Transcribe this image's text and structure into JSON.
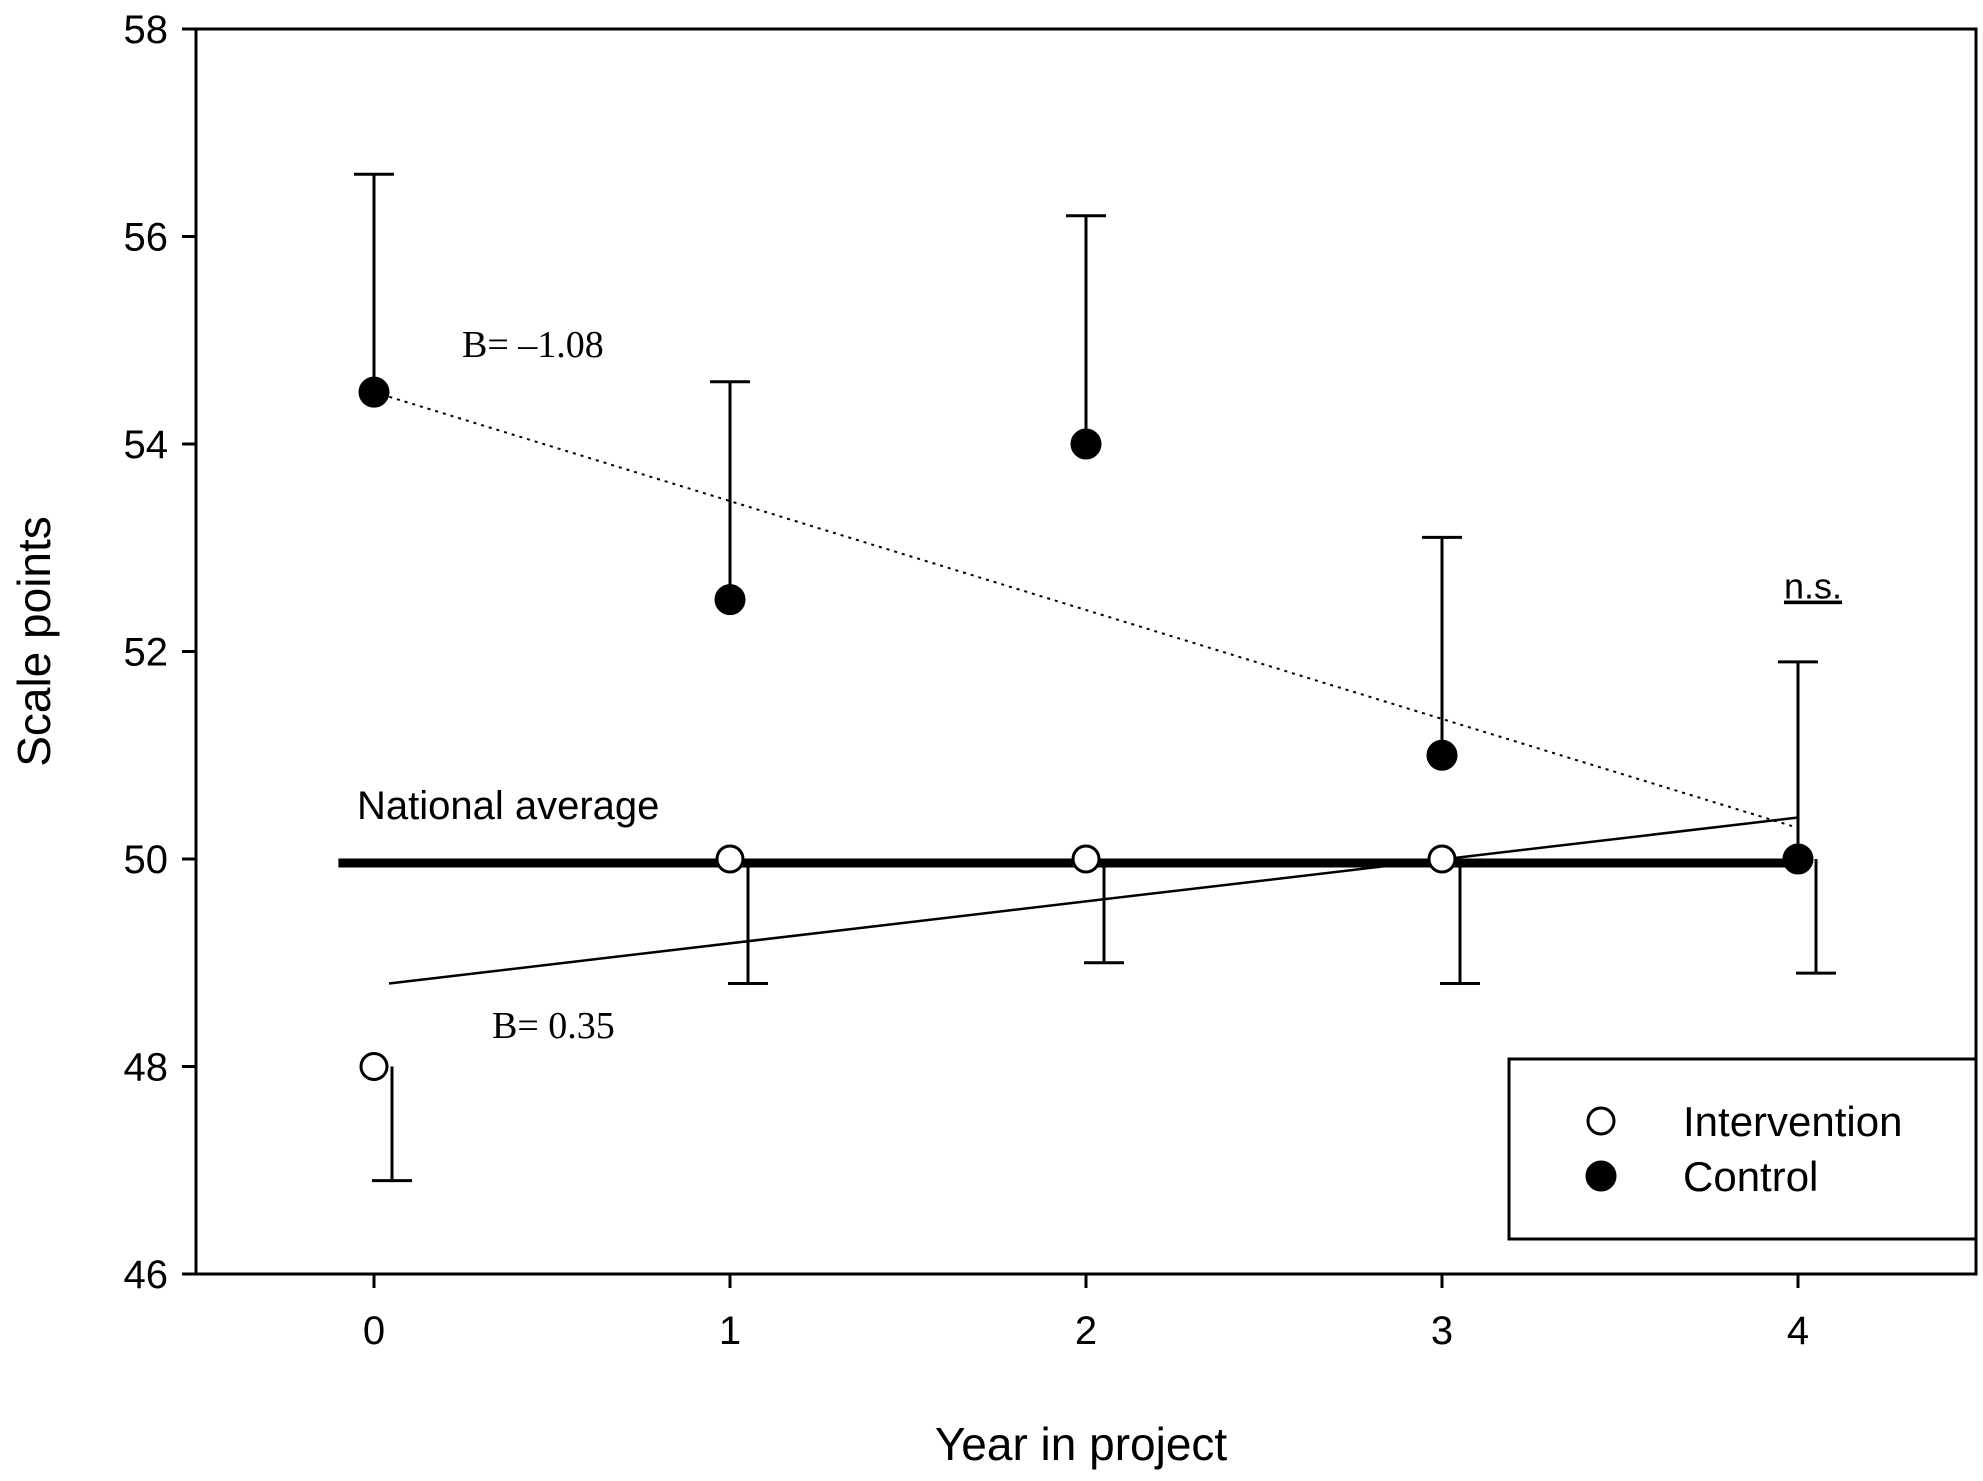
{
  "chart_data": {
    "type": "scatter",
    "title": "",
    "xlabel": "Year in project",
    "ylabel": "Scale points",
    "xlim": [
      -0.5,
      4.5
    ],
    "ylim": [
      46,
      58
    ],
    "x_ticks": [
      0,
      1,
      2,
      3,
      4
    ],
    "y_ticks": [
      46,
      48,
      50,
      52,
      54,
      56,
      58
    ],
    "grid": false,
    "legend_position": "bottom-right",
    "series": [
      {
        "name": "Intervention",
        "marker": "open-circle",
        "x": [
          0,
          1,
          2,
          3,
          4
        ],
        "y": [
          48.0,
          50.0,
          50.0,
          50.0,
          50.0
        ],
        "error_direction": "down",
        "error": [
          1.1,
          1.2,
          1.0,
          1.2,
          1.1
        ]
      },
      {
        "name": "Control",
        "marker": "filled-circle",
        "x": [
          0,
          1,
          2,
          3,
          4
        ],
        "y": [
          54.5,
          52.5,
          54.0,
          51.0,
          50.0
        ],
        "error_direction": "up",
        "error": [
          2.1,
          2.1,
          2.2,
          2.1,
          1.9
        ]
      }
    ],
    "trend_lines": [
      {
        "name": "Control trend",
        "style": "dotted",
        "x": [
          0,
          4
        ],
        "y": [
          54.5,
          50.3
        ],
        "label": "B= –1.08"
      },
      {
        "name": "Intervention trend",
        "style": "solid",
        "x": [
          0,
          4
        ],
        "y": [
          48.8,
          50.4
        ],
        "label": "B= 0.35"
      }
    ],
    "reference_line": {
      "label": "National average",
      "y": 50,
      "x_range": [
        -0.1,
        4
      ]
    },
    "annotations": [
      {
        "text": "n.s.",
        "x": 4,
        "y": 52.25
      }
    ]
  },
  "colors": {
    "ink": "#000000",
    "background": "#ffffff"
  }
}
